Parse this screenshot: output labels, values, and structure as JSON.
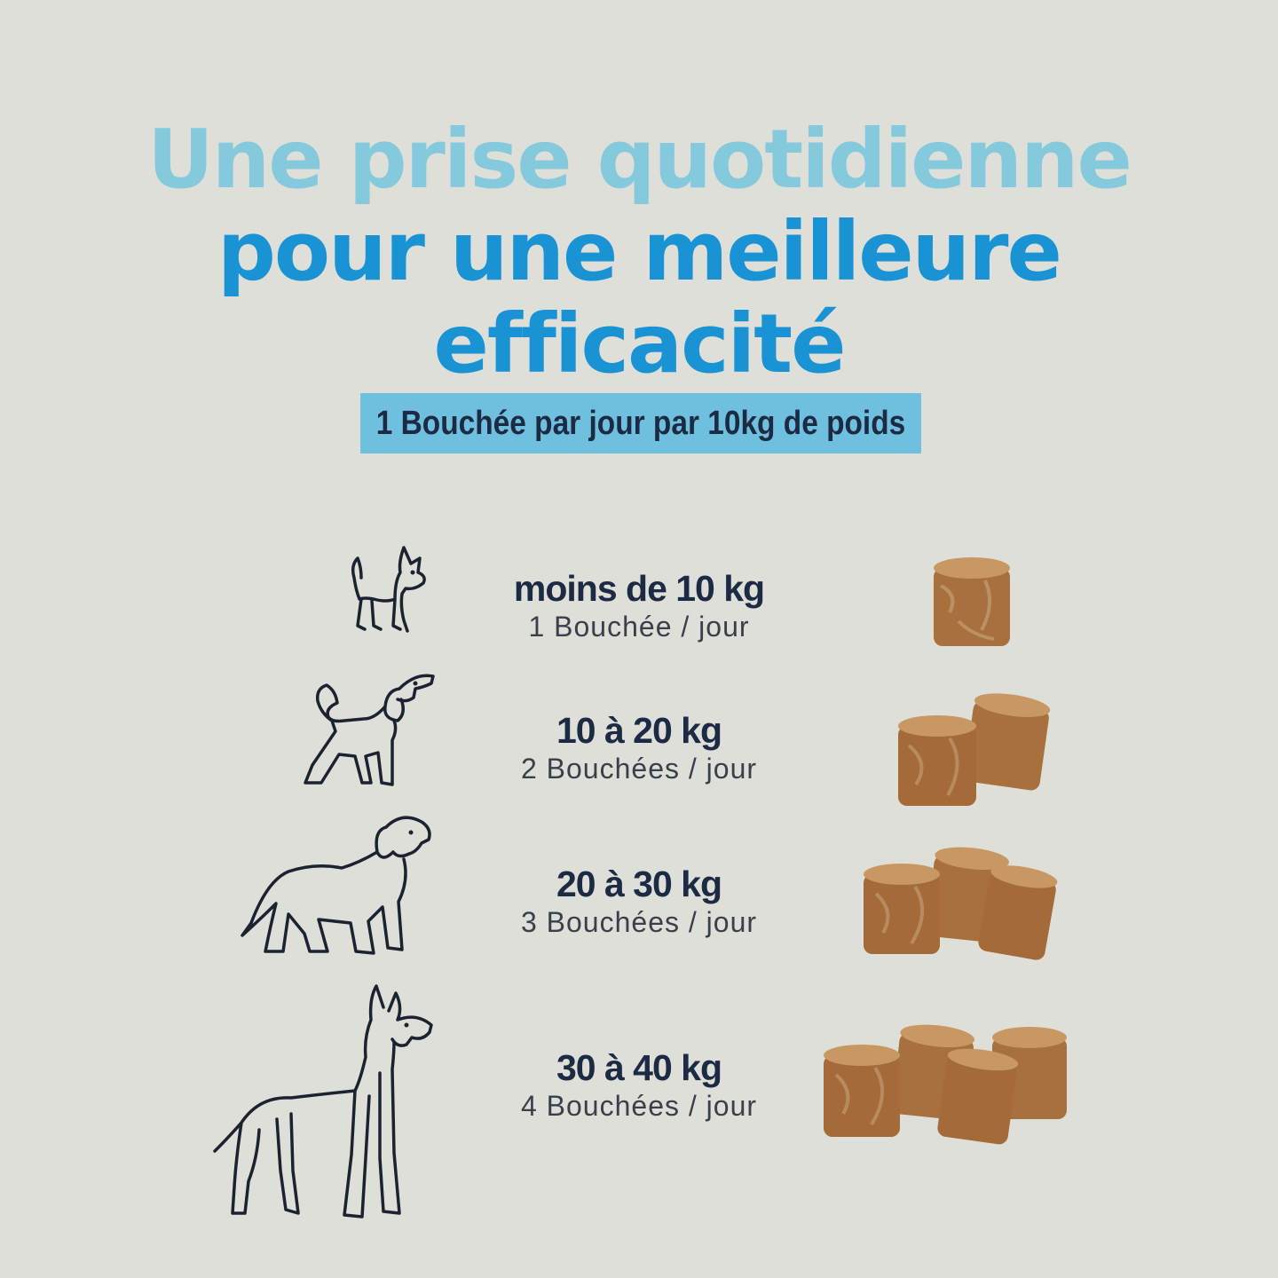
{
  "title": {
    "line1": "Une prise quotidienne",
    "line2": "pour une meilleure efficacité"
  },
  "dose_banner": "1 Bouchée par jour par 10kg de poids",
  "rows": [
    {
      "weight": "moins de 10 kg",
      "dose": "1 Bouchée / jour",
      "icon": "small-dog-icon",
      "treats": 1
    },
    {
      "weight": "10 à 20 kg",
      "dose": "2 Bouchées / jour",
      "icon": "medium-dog-icon",
      "treats": 2
    },
    {
      "weight": "20 à 30 kg",
      "dose": "3 Bouchées / jour",
      "icon": "large-dog-icon",
      "treats": 3
    },
    {
      "weight": "30 à 40 kg",
      "dose": "4 Bouchées / jour",
      "icon": "giant-dog-icon",
      "treats": 4
    }
  ],
  "colors": {
    "background": "#dfdfd9",
    "title_light": "#85c9dd",
    "title_dark": "#1993d3",
    "banner": "#6fc0de",
    "text_dark": "#1d2a44",
    "treat": "#b07a45"
  }
}
